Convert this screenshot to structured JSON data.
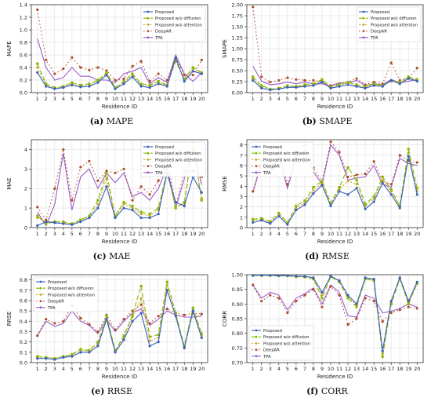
{
  "legend_labels": [
    "Proposed",
    "Proposed w/o diffusion",
    "Proposed w/o attention",
    "DeepAR",
    "TPA"
  ],
  "series_colors": [
    "#3a5fbf",
    "#88b800",
    "#c8a832",
    "#b04a2a",
    "#9a5cc8"
  ],
  "chart_data": [
    {
      "type": "line",
      "caption_label": "(a)",
      "caption_text": "MAPE",
      "ylabel": "MAPE",
      "xlabel": "Residence ID",
      "ylim": [
        0,
        1.4
      ],
      "yticks": [
        0.0,
        0.2,
        0.4,
        0.6,
        0.8,
        1.0,
        1.2,
        1.4
      ],
      "x": [
        1,
        2,
        3,
        4,
        5,
        6,
        7,
        8,
        9,
        10,
        11,
        12,
        13,
        14,
        15,
        16,
        17,
        18,
        19,
        20
      ],
      "legend_position": "top-right",
      "grid": true,
      "series": [
        {
          "name": "Proposed",
          "values": [
            0.32,
            0.1,
            0.06,
            0.08,
            0.12,
            0.09,
            0.1,
            0.16,
            0.28,
            0.06,
            0.14,
            0.25,
            0.1,
            0.08,
            0.14,
            0.1,
            0.56,
            0.18,
            0.34,
            0.3
          ]
        },
        {
          "name": "Proposed w/o diffusion",
          "values": [
            0.46,
            0.14,
            0.08,
            0.1,
            0.16,
            0.12,
            0.14,
            0.2,
            0.32,
            0.08,
            0.18,
            0.3,
            0.14,
            0.12,
            0.18,
            0.12,
            0.5,
            0.22,
            0.4,
            0.32
          ]
        },
        {
          "name": "Proposed w/o attention",
          "values": [
            0.4,
            0.12,
            0.07,
            0.09,
            0.14,
            0.11,
            0.12,
            0.18,
            0.3,
            0.07,
            0.16,
            0.28,
            0.12,
            0.1,
            0.16,
            0.11,
            0.53,
            0.2,
            0.38,
            0.31
          ]
        },
        {
          "name": "DeepAR",
          "values": [
            1.32,
            0.52,
            0.3,
            0.38,
            0.56,
            0.4,
            0.36,
            0.4,
            0.35,
            0.2,
            0.22,
            0.42,
            0.5,
            0.18,
            0.3,
            0.2,
            0.56,
            0.28,
            0.28,
            0.52
          ]
        },
        {
          "name": "TPA",
          "values": [
            0.86,
            0.4,
            0.2,
            0.24,
            0.4,
            0.26,
            0.26,
            0.2,
            0.2,
            0.16,
            0.3,
            0.34,
            0.4,
            0.14,
            0.24,
            0.16,
            0.6,
            0.3,
            0.18,
            0.32
          ]
        }
      ]
    },
    {
      "type": "line",
      "caption_label": "(b)",
      "caption_text": "SMAPE",
      "ylabel": "SMAPE",
      "xlabel": "Residence ID",
      "ylim": [
        0,
        2.0
      ],
      "yticks": [
        0.0,
        0.25,
        0.5,
        0.75,
        1.0,
        1.25,
        1.5,
        1.75,
        2.0
      ],
      "x": [
        1,
        2,
        3,
        4,
        5,
        6,
        7,
        8,
        9,
        10,
        11,
        12,
        13,
        14,
        15,
        16,
        17,
        18,
        19,
        20
      ],
      "legend_position": "top-right",
      "grid": true,
      "series": [
        {
          "name": "Proposed",
          "values": [
            0.28,
            0.1,
            0.06,
            0.08,
            0.12,
            0.12,
            0.14,
            0.16,
            0.24,
            0.1,
            0.14,
            0.18,
            0.14,
            0.1,
            0.16,
            0.14,
            0.28,
            0.2,
            0.32,
            0.26
          ]
        },
        {
          "name": "Proposed w/o diffusion",
          "values": [
            0.36,
            0.16,
            0.08,
            0.1,
            0.16,
            0.14,
            0.18,
            0.2,
            0.3,
            0.12,
            0.18,
            0.24,
            0.18,
            0.14,
            0.2,
            0.16,
            0.26,
            0.24,
            0.36,
            0.3
          ]
        },
        {
          "name": "Proposed w/o attention",
          "values": [
            0.32,
            0.14,
            0.07,
            0.09,
            0.14,
            0.13,
            0.16,
            0.18,
            0.28,
            0.11,
            0.16,
            0.22,
            0.16,
            0.12,
            0.18,
            0.15,
            0.27,
            0.22,
            0.34,
            0.28
          ]
        },
        {
          "name": "DeepAR",
          "values": [
            1.95,
            0.36,
            0.24,
            0.28,
            0.34,
            0.3,
            0.28,
            0.28,
            0.24,
            0.16,
            0.2,
            0.24,
            0.32,
            0.18,
            0.24,
            0.2,
            0.68,
            0.28,
            0.32,
            0.56
          ]
        },
        {
          "name": "TPA",
          "values": [
            0.6,
            0.26,
            0.18,
            0.2,
            0.24,
            0.2,
            0.24,
            0.2,
            0.2,
            0.16,
            0.22,
            0.22,
            0.28,
            0.16,
            0.2,
            0.18,
            0.3,
            0.22,
            0.26,
            0.3
          ]
        }
      ]
    },
    {
      "type": "line",
      "caption_label": "(c)",
      "caption_text": "MAE",
      "ylabel": "MAE",
      "xlabel": "Residence ID",
      "ylim": [
        0,
        4.5
      ],
      "yticks": [
        0,
        1,
        2,
        3,
        4
      ],
      "x": [
        1,
        2,
        3,
        4,
        5,
        6,
        7,
        8,
        9,
        10,
        11,
        12,
        13,
        14,
        15,
        16,
        17,
        18,
        19,
        20
      ],
      "legend_position": "top-right",
      "grid": true,
      "series": [
        {
          "name": "Proposed",
          "values": [
            0.1,
            0.3,
            0.25,
            0.2,
            0.15,
            0.3,
            0.5,
            1.0,
            2.1,
            0.5,
            1.0,
            0.9,
            0.5,
            0.5,
            0.7,
            2.8,
            1.3,
            1.1,
            2.6,
            1.8
          ]
        },
        {
          "name": "Proposed w/o diffusion",
          "values": [
            0.6,
            0.2,
            0.3,
            0.3,
            0.2,
            0.4,
            0.6,
            1.4,
            2.8,
            0.6,
            1.3,
            1.1,
            0.8,
            0.7,
            1.0,
            2.9,
            1.0,
            1.3,
            4.3,
            1.4
          ]
        },
        {
          "name": "Proposed w/o attention",
          "values": [
            0.5,
            0.3,
            0.3,
            0.25,
            0.2,
            0.35,
            0.55,
            1.2,
            2.5,
            0.55,
            1.2,
            1.0,
            0.7,
            0.6,
            0.9,
            2.85,
            1.1,
            1.2,
            4.1,
            1.5
          ]
        },
        {
          "name": "DeepAR",
          "values": [
            1.05,
            0.4,
            2.0,
            4.0,
            1.4,
            3.1,
            3.4,
            2.4,
            2.9,
            2.8,
            3.0,
            1.4,
            2.1,
            1.7,
            2.4,
            3.6,
            1.1,
            2.9,
            2.9,
            2.6
          ]
        },
        {
          "name": "TPA",
          "values": [
            0.8,
            0.1,
            1.2,
            3.8,
            0.9,
            2.6,
            3.0,
            2.0,
            2.8,
            2.3,
            2.8,
            1.6,
            1.8,
            1.4,
            2.0,
            3.1,
            1.0,
            2.5,
            4.0,
            2.2
          ]
        }
      ]
    },
    {
      "type": "line",
      "caption_label": "(d)",
      "caption_text": "RMSE",
      "ylabel": "RMSE",
      "xlabel": "Residence ID",
      "ylim": [
        0,
        8.5
      ],
      "yticks": [
        0,
        1,
        2,
        3,
        4,
        5,
        6,
        7,
        8
      ],
      "x": [
        1,
        2,
        3,
        4,
        5,
        6,
        7,
        8,
        9,
        10,
        11,
        12,
        13,
        14,
        15,
        16,
        17,
        18,
        19,
        20
      ],
      "legend_position": "top-left",
      "grid": true,
      "series": [
        {
          "name": "Proposed",
          "values": [
            0.5,
            0.7,
            0.4,
            1.1,
            0.3,
            1.7,
            2.2,
            3.3,
            4.1,
            2.1,
            3.5,
            3.2,
            3.8,
            1.8,
            2.5,
            4.3,
            3.2,
            1.9,
            6.9,
            3.2
          ]
        },
        {
          "name": "Proposed w/o diffusion",
          "values": [
            0.8,
            0.9,
            0.6,
            1.4,
            0.5,
            2.1,
            2.6,
            3.9,
            4.5,
            2.4,
            3.9,
            5.8,
            4.6,
            2.3,
            3.0,
            4.9,
            3.7,
            2.1,
            7.6,
            3.8
          ]
        },
        {
          "name": "Proposed w/o attention",
          "values": [
            0.7,
            0.8,
            0.5,
            1.3,
            0.4,
            1.9,
            2.4,
            3.6,
            4.3,
            2.3,
            3.7,
            4.5,
            4.2,
            2.1,
            2.8,
            4.6,
            3.5,
            2.0,
            7.2,
            3.5
          ]
        },
        {
          "name": "DeepAR",
          "values": [
            3.5,
            6.5,
            5.7,
            7.3,
            4.2,
            7.0,
            8.0,
            5.8,
            4.4,
            8.3,
            7.3,
            4.9,
            5.1,
            5.2,
            6.4,
            4.5,
            4.2,
            7.0,
            6.5,
            6.3
          ]
        },
        {
          "name": "TPA",
          "values": [
            3.4,
            6.2,
            5.2,
            7.0,
            3.8,
            6.7,
            7.5,
            5.4,
            4.2,
            8.0,
            7.0,
            4.6,
            4.8,
            4.9,
            6.0,
            4.2,
            3.9,
            6.7,
            6.2,
            6.0
          ]
        }
      ]
    },
    {
      "type": "line",
      "caption_label": "(e)",
      "caption_text": "RRSE",
      "ylabel": "RRSE",
      "xlabel": "Residence ID",
      "ylim": [
        0,
        0.85
      ],
      "yticks": [
        0.0,
        0.1,
        0.2,
        0.3,
        0.4,
        0.5,
        0.6,
        0.7,
        0.8
      ],
      "x": [
        1,
        2,
        3,
        4,
        5,
        6,
        7,
        8,
        9,
        10,
        11,
        12,
        13,
        14,
        15,
        16,
        17,
        18,
        19,
        20
      ],
      "legend_position": "top-left",
      "grid": true,
      "series": [
        {
          "name": "Proposed",
          "values": [
            0.04,
            0.04,
            0.03,
            0.05,
            0.06,
            0.1,
            0.1,
            0.16,
            0.42,
            0.1,
            0.22,
            0.4,
            0.48,
            0.16,
            0.2,
            0.7,
            0.45,
            0.14,
            0.5,
            0.24
          ]
        },
        {
          "name": "Proposed w/o diffusion",
          "values": [
            0.06,
            0.05,
            0.04,
            0.06,
            0.08,
            0.13,
            0.12,
            0.2,
            0.45,
            0.12,
            0.26,
            0.46,
            0.74,
            0.25,
            0.27,
            0.78,
            0.48,
            0.16,
            0.53,
            0.28
          ]
        },
        {
          "name": "Proposed w/o attention",
          "values": [
            0.05,
            0.05,
            0.04,
            0.06,
            0.07,
            0.12,
            0.11,
            0.18,
            0.44,
            0.11,
            0.24,
            0.44,
            0.62,
            0.21,
            0.24,
            0.75,
            0.47,
            0.15,
            0.52,
            0.26
          ]
        },
        {
          "name": "DeepAR",
          "values": [
            0.26,
            0.42,
            0.38,
            0.4,
            0.55,
            0.43,
            0.37,
            0.3,
            0.46,
            0.32,
            0.42,
            0.5,
            0.56,
            0.38,
            0.45,
            0.52,
            0.48,
            0.46,
            0.48,
            0.47
          ]
        },
        {
          "name": "TPA",
          "values": [
            0.26,
            0.4,
            0.35,
            0.38,
            0.5,
            0.4,
            0.36,
            0.28,
            0.42,
            0.3,
            0.4,
            0.48,
            0.52,
            0.36,
            0.42,
            0.5,
            0.46,
            0.44,
            0.44,
            0.45
          ]
        }
      ]
    },
    {
      "type": "line",
      "caption_label": "(f)",
      "caption_text": "CORR",
      "ylabel": "CORR",
      "xlabel": "Residence ID",
      "ylim": [
        0.7,
        1.0
      ],
      "yticks": [
        0.7,
        0.75,
        0.8,
        0.85,
        0.9,
        0.95,
        1.0
      ],
      "x": [
        1,
        2,
        3,
        4,
        5,
        6,
        7,
        8,
        9,
        10,
        11,
        12,
        13,
        14,
        15,
        16,
        17,
        18,
        19,
        20
      ],
      "legend_position": "bottom-left",
      "grid": true,
      "series": [
        {
          "name": "Proposed",
          "values": [
            0.998,
            0.998,
            0.998,
            0.997,
            0.997,
            0.995,
            0.994,
            0.99,
            0.94,
            0.995,
            0.98,
            0.93,
            0.9,
            0.99,
            0.985,
            0.74,
            0.91,
            0.99,
            0.91,
            0.975
          ]
        },
        {
          "name": "Proposed w/o diffusion",
          "values": [
            0.997,
            0.997,
            0.997,
            0.996,
            0.996,
            0.993,
            0.992,
            0.985,
            0.92,
            0.993,
            0.975,
            0.92,
            0.89,
            0.985,
            0.98,
            0.72,
            0.9,
            0.985,
            0.9,
            0.97
          ]
        },
        {
          "name": "Proposed w/o attention",
          "values": [
            0.998,
            0.998,
            0.997,
            0.997,
            0.996,
            0.994,
            0.993,
            0.988,
            0.93,
            0.994,
            0.978,
            0.925,
            0.895,
            0.988,
            0.982,
            0.73,
            0.905,
            0.988,
            0.905,
            0.972
          ]
        },
        {
          "name": "DeepAR",
          "values": [
            0.965,
            0.91,
            0.93,
            0.92,
            0.87,
            0.91,
            0.93,
            0.95,
            0.89,
            0.96,
            0.93,
            0.83,
            0.85,
            0.92,
            0.91,
            0.84,
            0.87,
            0.88,
            0.89,
            0.885
          ]
        },
        {
          "name": "TPA",
          "values": [
            0.965,
            0.92,
            0.94,
            0.93,
            0.88,
            0.92,
            0.935,
            0.955,
            0.9,
            0.965,
            0.94,
            0.86,
            0.855,
            0.93,
            0.92,
            0.87,
            0.875,
            0.885,
            0.9,
            0.89
          ]
        }
      ]
    }
  ]
}
